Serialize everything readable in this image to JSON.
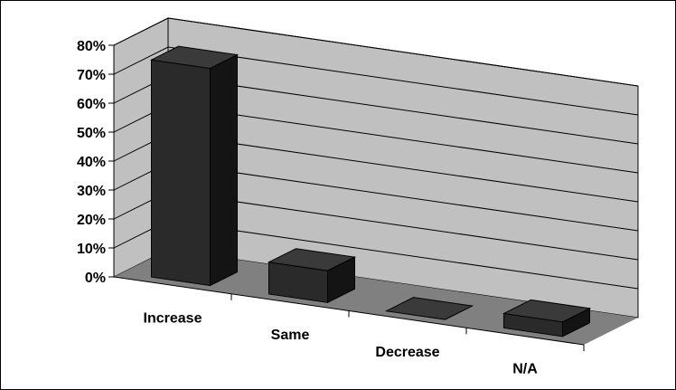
{
  "chart_data": {
    "type": "bar",
    "style": "3d-column",
    "categories": [
      "Increase",
      "Same",
      "Decrease",
      "N/A"
    ],
    "values": [
      75,
      11,
      0,
      5
    ],
    "y_tick_labels": [
      "0%",
      "10%",
      "20%",
      "30%",
      "40%",
      "50%",
      "60%",
      "70%",
      "80%"
    ],
    "ylim": [
      0,
      80
    ],
    "grid": true,
    "legend": false,
    "title": "",
    "xlabel": "",
    "ylabel": "",
    "colors": {
      "bar_front": "#2a2a2a",
      "bar_side": "#141414",
      "bar_top": "#3a3a3a",
      "back_wall": "#c0c0c0",
      "side_wall": "#c0c0c0",
      "floor": "#808080",
      "gridline": "#000000"
    }
  }
}
